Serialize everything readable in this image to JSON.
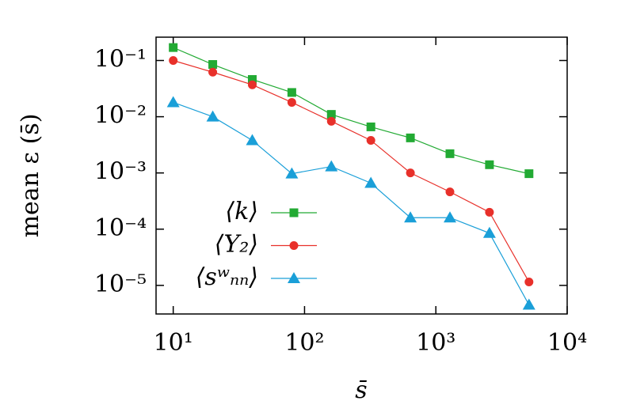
{
  "chart_data": {
    "type": "line",
    "x_label": "s̄",
    "y_label": "mean ε (s̄)",
    "x": [
      10,
      20,
      40,
      80,
      160,
      320,
      640,
      1280,
      2560,
      5120
    ],
    "series": [
      {
        "name": "⟨k⟩",
        "color": "#22aa33",
        "marker": "square",
        "values": [
          0.17,
          0.085,
          0.046,
          0.027,
          0.011,
          0.0066,
          0.0042,
          0.0022,
          0.0014,
          0.00097
        ]
      },
      {
        "name": "⟨Y₂⟩",
        "color": "#e8302a",
        "marker": "circle",
        "values": [
          0.1,
          0.062,
          0.037,
          0.018,
          0.0083,
          0.0038,
          0.001,
          0.00046,
          0.0002,
          1.15e-05
        ]
      },
      {
        "name": "⟨sʷₙₙ⟩",
        "color": "#1a9fd8",
        "marker": "triangle",
        "values": [
          0.018,
          0.01,
          0.0038,
          0.00097,
          0.0013,
          0.00066,
          0.00016,
          0.00016,
          8.5e-05,
          4.5e-06
        ]
      }
    ],
    "x_scale": "log",
    "y_scale": "log",
    "xlim": [
      7.4,
      10000
    ],
    "ylim": [
      3.1e-06,
      0.26
    ],
    "xticks": [
      {
        "value": 10,
        "label": "10¹"
      },
      {
        "value": 100,
        "label": "10²"
      },
      {
        "value": 1000,
        "label": "10³"
      },
      {
        "value": 10000,
        "label": "10⁴"
      }
    ],
    "yticks": [
      {
        "value": 0.1,
        "label": "10⁻¹"
      },
      {
        "value": 0.01,
        "label": "10⁻²"
      },
      {
        "value": 0.001,
        "label": "10⁻³"
      },
      {
        "value": 0.0001,
        "label": "10⁻⁴"
      },
      {
        "value": 1e-05,
        "label": "10⁻⁵"
      }
    ],
    "grid": false,
    "legend": "bottom-left"
  }
}
